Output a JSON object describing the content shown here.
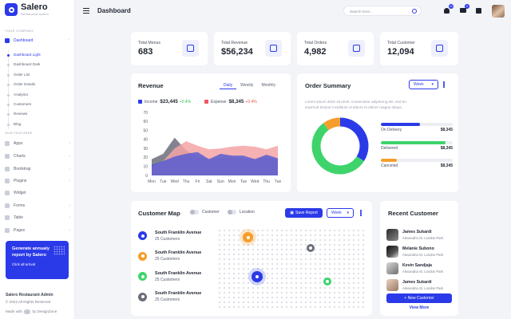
{
  "brand": {
    "name": "Salero",
    "subtitle": "Restaurant Admin"
  },
  "sidebar": {
    "section1": "YOUR COMPANY",
    "dashboard": "Dashboard",
    "dashboard_sub": [
      "Dashboard Light",
      "Dashboard Dark",
      "Order List",
      "Order Details",
      "Analytics",
      "Customers",
      "Reviews",
      "Blog"
    ],
    "section2": "OUR FEATURES",
    "features": [
      "Apps",
      "Charts",
      "Bootstrap",
      "Plugins",
      "Widget",
      "Forms",
      "Table",
      "Pages"
    ],
    "promo": {
      "title": "Generate annualy report by Salero",
      "link": "Click all arrival"
    },
    "footer": {
      "name": "Salero Restaurant Admin",
      "copy": "© 2022 All Rights Reserved",
      "made_pre": "Made with",
      "made_post": "by DesignZone"
    }
  },
  "header": {
    "title": "Dashboard",
    "search_placeholder": "Search here...",
    "badges": {
      "bell": "12",
      "mail": "5"
    }
  },
  "stats": [
    {
      "title": "Total Menus",
      "value": "683",
      "icon": "grid-icon"
    },
    {
      "title": "Total Revenue",
      "value": "$56,234",
      "icon": "money-bag-icon"
    },
    {
      "title": "Total Orders",
      "value": "4,982",
      "icon": "order-icon"
    },
    {
      "title": "Total Customer",
      "value": "12,094",
      "icon": "customer-icon"
    }
  ],
  "revenue": {
    "title": "Revenue",
    "tabs": [
      "Daily",
      "Weekly",
      "Monthly"
    ],
    "active_tab": "Daily",
    "income": {
      "label": "Income",
      "value": "$23,445",
      "change": "+0.4%"
    },
    "expense": {
      "label": "Expense",
      "value": "$8,345",
      "change": "+0.4%"
    },
    "colors": {
      "income": "#2b3ae8",
      "expense": "#f0565f"
    }
  },
  "chart_data": {
    "type": "area",
    "categories": [
      "Mon",
      "Tue",
      "Wed",
      "Thu",
      "Fri",
      "Sat",
      "Sun",
      "Mon",
      "Tue",
      "Wed",
      "Thu",
      "Tue"
    ],
    "ylim": [
      0,
      70
    ],
    "yticks": [
      0,
      10,
      20,
      30,
      40,
      50,
      60,
      70
    ],
    "series": [
      {
        "name": "",
        "color": "#6b6f7a",
        "values": [
          18,
          24,
          42,
          28,
          20,
          19,
          19,
          20,
          18,
          19,
          20,
          18
        ]
      },
      {
        "name": "",
        "color": "#f4a3a6",
        "values": [
          10,
          16,
          30,
          38,
          33,
          29,
          30,
          32,
          33,
          32,
          29,
          33
        ]
      },
      {
        "name": "",
        "color": "#4a56d6",
        "values": [
          12,
          16,
          21,
          24,
          26,
          18,
          24,
          22,
          22,
          18,
          23,
          19
        ]
      }
    ]
  },
  "order_summary": {
    "title": "Order Summary",
    "period": "Week",
    "description": "Lorem ipsum dolor sit amet, consectetur adipiscing elit, sed do eiusmod tempor incididunt ut labore et dolore magna aliqua.",
    "items": [
      {
        "label": "On Delivery",
        "value": "$8,345",
        "color": "#2b3ae8",
        "percent": 34
      },
      {
        "label": "Delivered",
        "value": "$8,345",
        "color": "#3ed46b",
        "percent": 56
      },
      {
        "label": "Canceled",
        "value": "$8,345",
        "color": "#f59e2c",
        "percent": 10
      }
    ]
  },
  "customer_map": {
    "title": "Customer Map",
    "toggle_customer": "Customer",
    "toggle_location": "Location",
    "save_label": "Save Report",
    "period": "Week",
    "locations": [
      {
        "name": "South Franklin Avenue",
        "customers": "25 Customers",
        "color": "#2b3ae8"
      },
      {
        "name": "South Franklin Avenue",
        "customers": "25 Customers",
        "color": "#f59e2c"
      },
      {
        "name": "South Franklin Avenue",
        "customers": "25 Customers",
        "color": "#3ed46b"
      },
      {
        "name": "South Franklin Avenue",
        "customers": "25 Customers",
        "color": "#6b6f7a"
      }
    ]
  },
  "recent_customer": {
    "title": "Recent Customer",
    "customers": [
      {
        "name": "James Sukardi",
        "address": "Alexandria St. London Park"
      },
      {
        "name": "Melanie Subono",
        "address": "Alexandria St. London Park"
      },
      {
        "name": "Kevin Sandjaja",
        "address": "Alexandria St. London Park"
      },
      {
        "name": "James Sukardi",
        "address": "Alexandria St. London Park"
      }
    ],
    "new_label": "+ New Customer",
    "more_label": "View More"
  }
}
